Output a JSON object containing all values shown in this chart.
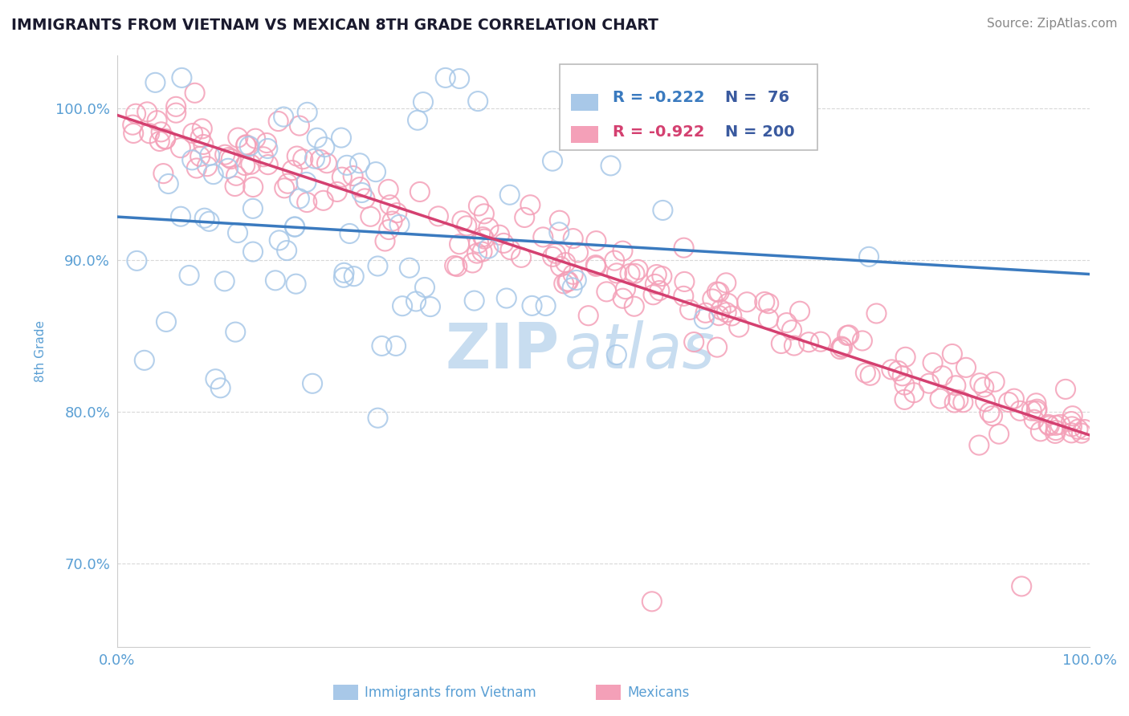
{
  "title": "IMMIGRANTS FROM VIETNAM VS MEXICAN 8TH GRADE CORRELATION CHART",
  "source_text": "Source: ZipAtlas.com",
  "ylabel": "8th Grade",
  "xlim": [
    0.0,
    1.0
  ],
  "ylim": [
    0.645,
    1.035
  ],
  "legend_vietnam_r": "R = -0.222",
  "legend_vietnam_n": "N =  76",
  "legend_mexican_r": "R = -0.922",
  "legend_mexican_n": "N = 200",
  "color_vietnam": "#a8c8e8",
  "color_mexican": "#f4a0b8",
  "trendline_vietnam": "#3a7abf",
  "trendline_mexican": "#d44070",
  "watermark_zip": "ZIP",
  "watermark_atlas": "atlas",
  "watermark_color": "#c8ddf0",
  "background_color": "#ffffff",
  "grid_color": "#d8d8d8",
  "title_color": "#1a1a2e",
  "source_color": "#888888",
  "axis_label_color": "#5a9fd4",
  "tick_label_color": "#5a9fd4",
  "legend_r_color_viet": "#3a7abf",
  "legend_r_color_mex": "#d44070",
  "legend_n_color": "#3a5a9f"
}
